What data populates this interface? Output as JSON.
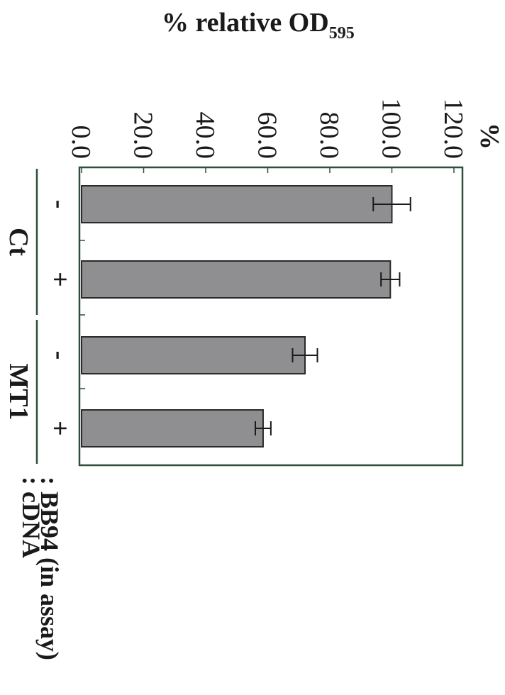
{
  "chart_data": {
    "type": "bar",
    "orientation": "vertical, figure rotated 90° clockwise",
    "categories": [
      "-",
      "+",
      "-",
      "+"
    ],
    "values": [
      100.0,
      99.5,
      72.0,
      58.5
    ],
    "errors": [
      6.0,
      3.0,
      4.0,
      2.5
    ],
    "groups": [
      {
        "label": "Ct",
        "members": [
          0,
          1
        ]
      },
      {
        "label": "MT1",
        "members": [
          2,
          3
        ]
      }
    ],
    "ylabel_main": "% relative OD",
    "ylabel_sub": "595",
    "ylabel_unit": "%",
    "ylim": [
      0,
      120
    ],
    "yticks": [
      "0.0",
      "20.0",
      "40.0",
      "60.0",
      "80.0",
      "100.0",
      "120.0"
    ],
    "row_labels": [
      ": BB94 (in assay)",
      ": cDNA"
    ],
    "colors": {
      "bar": "#8f8f92",
      "bar_stroke": "#2a2a2a",
      "axis": "#2f4f3a",
      "text": "#1a1a1a"
    }
  }
}
